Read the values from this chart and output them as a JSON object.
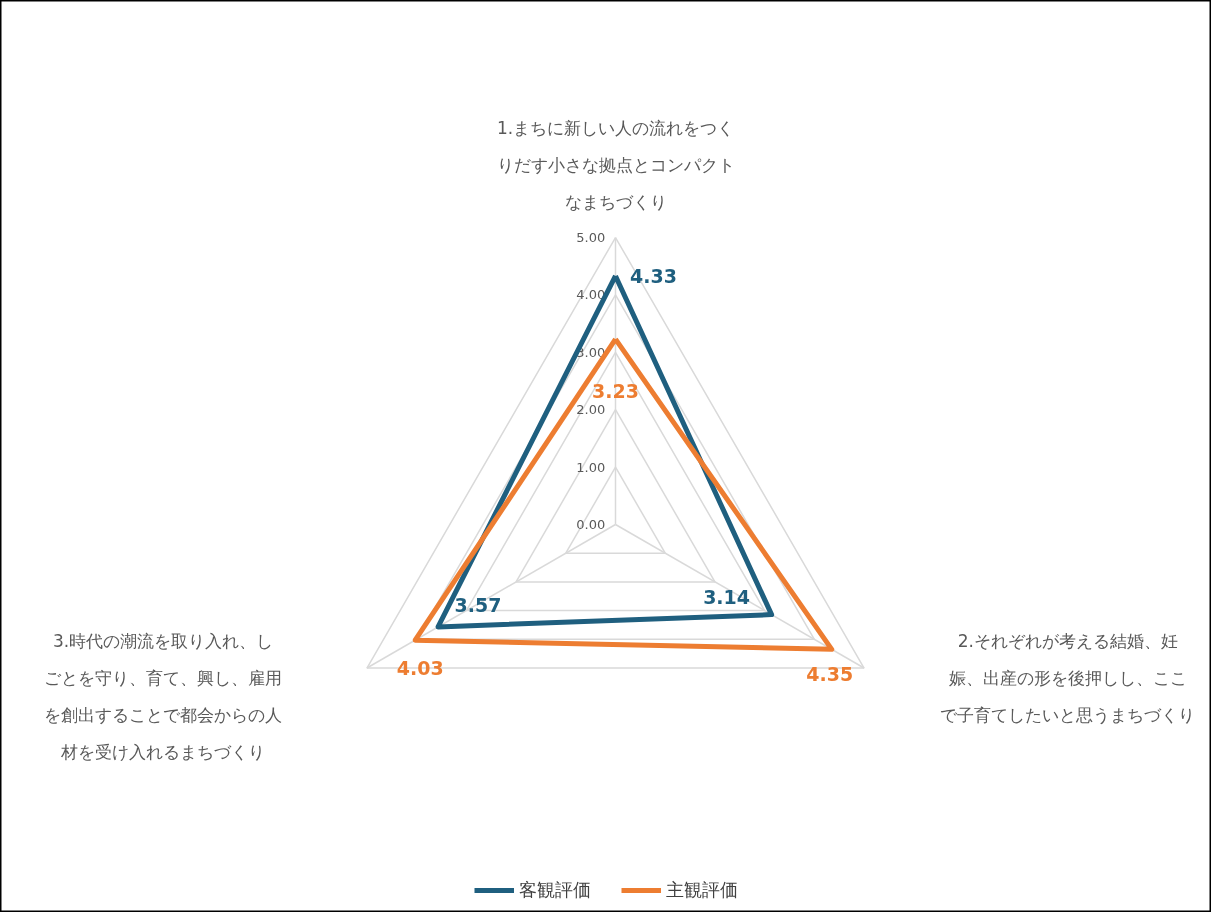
{
  "chart_data": {
    "type": "radar",
    "categories": [
      "1.まちに新しい人の流れをつくりだす小さな拠点とコンパクトなまちづくり",
      "2.それぞれが考える結婚、妊娠、出産の形を後押しし、ここで子育てしたいと思うまちづくり",
      "3.時代の潮流を取り入れ、しごとを守り、育て、興し、雇用を創出することで都会からの人材を受け入れるまちづくり"
    ],
    "series": [
      {
        "name": "客観評価",
        "color": "#1f5f7f",
        "values": [
          4.33,
          3.14,
          3.57
        ]
      },
      {
        "name": "主観評価",
        "color": "#ed7d31",
        "values": [
          3.23,
          4.35,
          4.03
        ]
      }
    ],
    "ylim": [
      0,
      5
    ],
    "yticks": [
      {
        "value": 0,
        "label": "0.00"
      },
      {
        "value": 1,
        "label": "1.00"
      },
      {
        "value": 2,
        "label": "2.00"
      },
      {
        "value": 3,
        "label": "3.00"
      },
      {
        "value": 4,
        "label": "4.00"
      },
      {
        "value": 5,
        "label": "5.00"
      }
    ],
    "data_labels": true,
    "legend": "bottom",
    "grid": true
  }
}
